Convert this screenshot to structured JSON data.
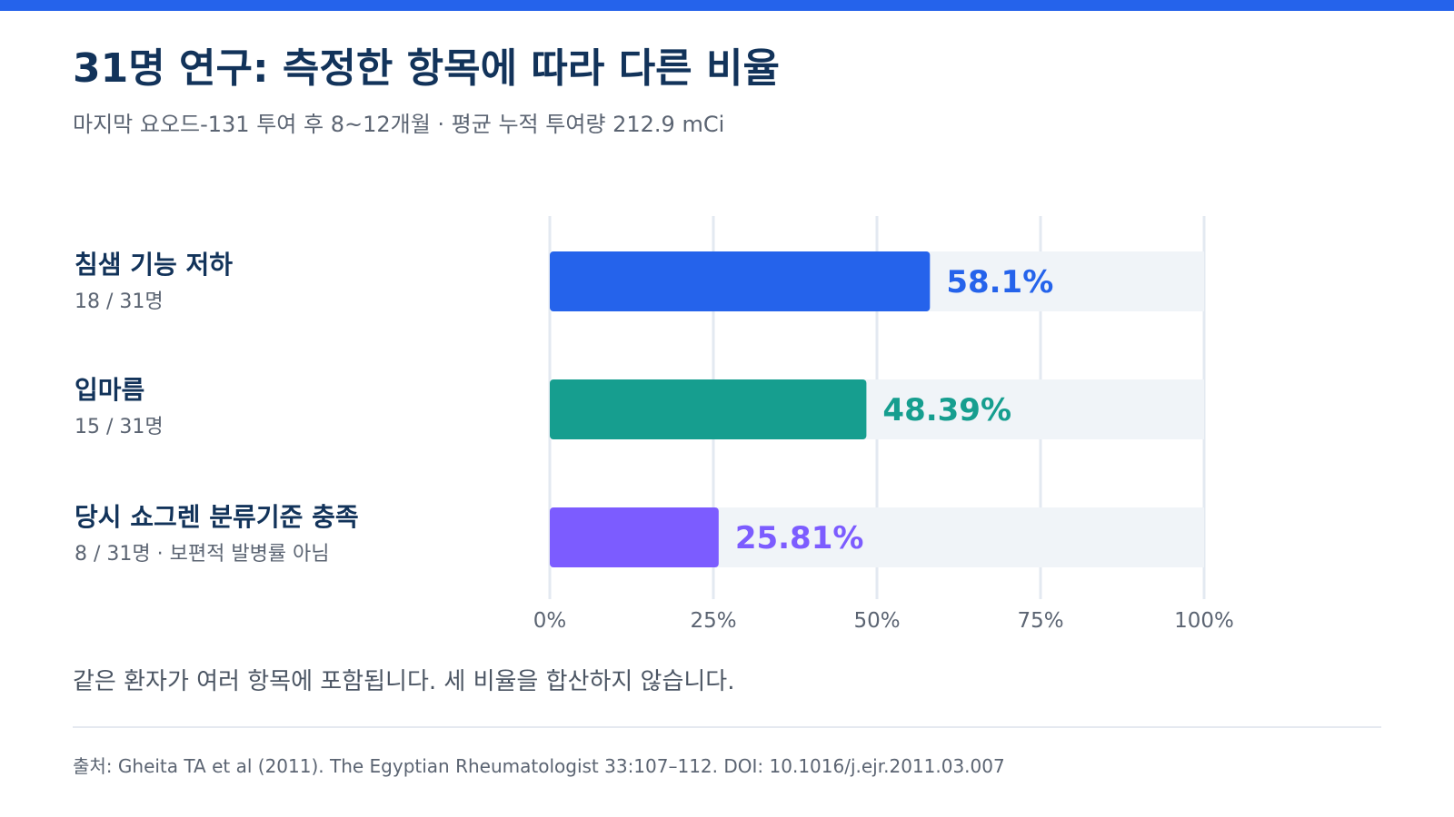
{
  "header": {
    "title": "31명 연구: 측정한 항목에 따라 다른 비율",
    "subtitle": "마지막 요오드-131 투여 후 8~12개월 · 평균 누적 투여량 212.9 mCi"
  },
  "rows": [
    {
      "label": "침샘 기능 저하",
      "detail": "18 / 31명"
    },
    {
      "label": "입마름",
      "detail": "15 / 31명"
    },
    {
      "label": "당시 쇼그렌 분류기준 충족",
      "detail": "8 / 31명 · 보편적 발병률 아님"
    }
  ],
  "chart_data": {
    "type": "bar",
    "orientation": "horizontal",
    "categories": [
      "침샘 기능 저하",
      "입마름",
      "당시 쇼그렌 분류기준 충족"
    ],
    "values": [
      58.1,
      48.39,
      25.81
    ],
    "value_labels": [
      "58.1%",
      "48.39%",
      "25.81%"
    ],
    "colors": [
      "#2563eb",
      "#169e8f",
      "#7c5cff"
    ],
    "track_color": "#f0f4f8",
    "xlim": [
      0,
      100
    ],
    "xticks": [
      0,
      25,
      50,
      75,
      100
    ],
    "xtick_labels": [
      "0%",
      "25%",
      "50%",
      "75%",
      "100%"
    ],
    "grid": true
  },
  "note": "같은 환자가 여러 항목에 포함됩니다. 세 비율을 합산하지 않습니다.",
  "source": "출처: Gheita TA et al (2011). The Egyptian Rheumatologist 33:107–112. DOI: 10.1016/j.ejr.2011.03.007"
}
